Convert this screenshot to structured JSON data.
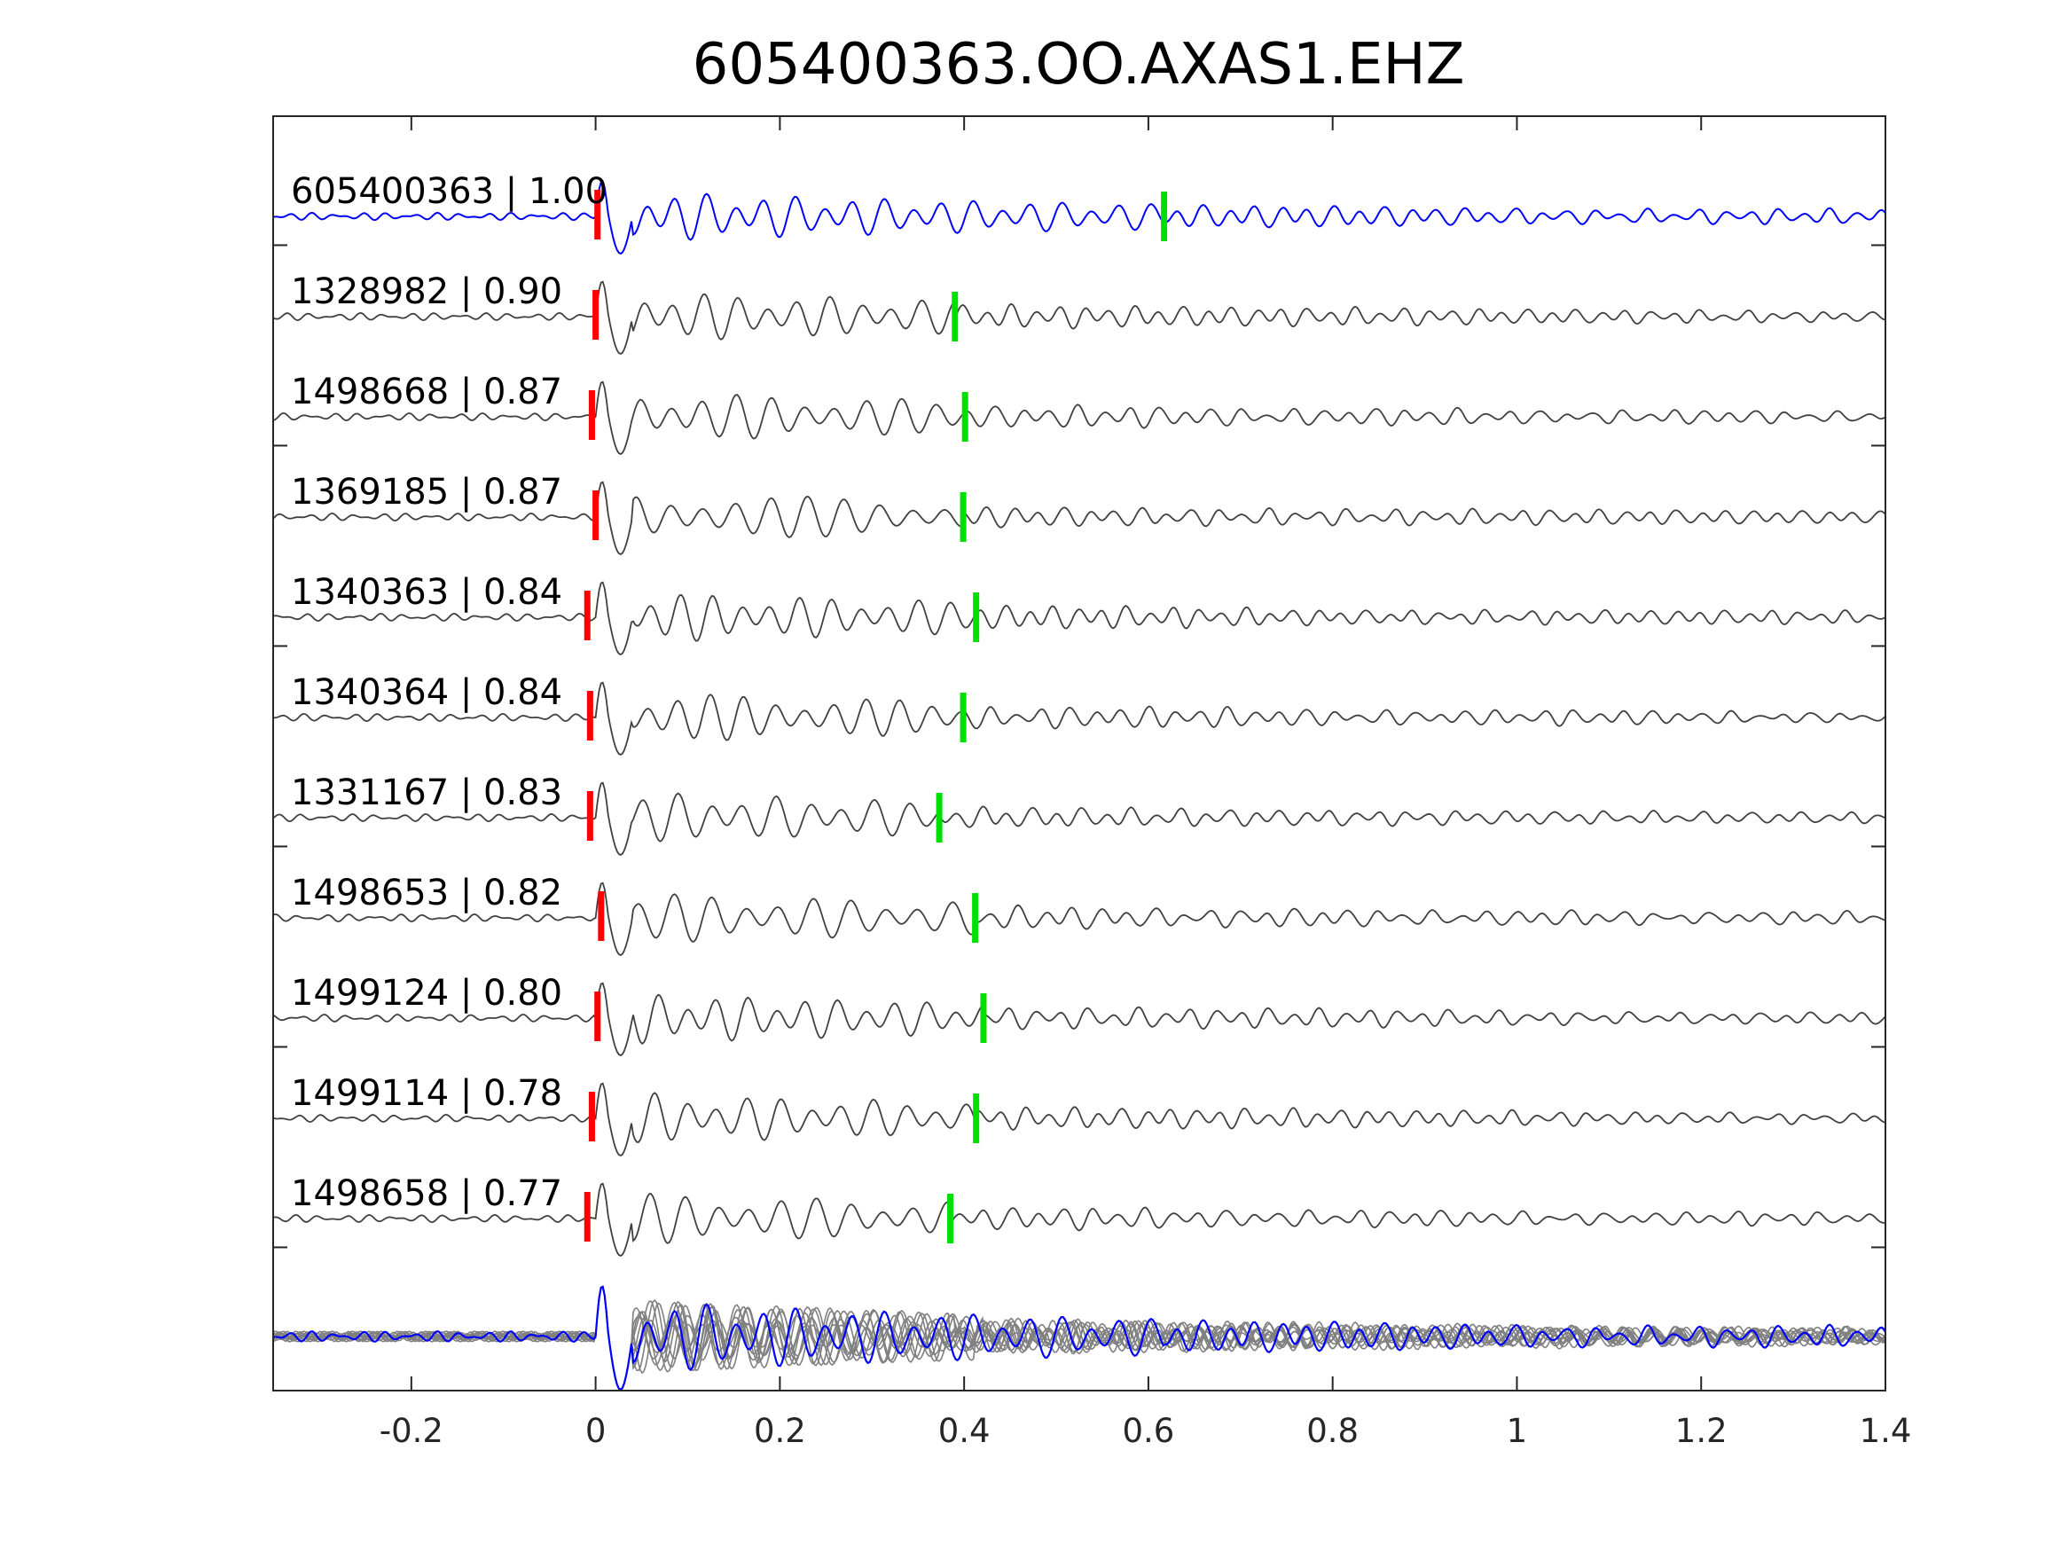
{
  "chart_data": {
    "type": "line",
    "title": "605400363.OO.AXAS1.EHZ",
    "xlabel": "",
    "ylabel": "",
    "xlim": [
      -0.35,
      1.4
    ],
    "grid": false,
    "x_ticks": [
      -0.2,
      0,
      0.2,
      0.4,
      0.6,
      0.8,
      1,
      1.2,
      1.4
    ],
    "x_tick_labels": [
      "-0.2",
      "0",
      "0.2",
      "0.4",
      "0.6",
      "0.8",
      "1",
      "1.2",
      "1.4"
    ],
    "colors": {
      "master": "#0000ff",
      "neighbor": "#404040",
      "stack_neighbor": "#808080",
      "p_pick": "#ff0000",
      "s_pick": "#00e000"
    },
    "series": [
      {
        "id": "605400363",
        "cc": "1.00",
        "label": "605400363 | 1.00",
        "p_pick": 0.002,
        "s_pick": 0.617,
        "master": true
      },
      {
        "id": "1328982",
        "cc": "0.90",
        "label": "1328982 | 0.90",
        "p_pick": 0.0,
        "s_pick": 0.39
      },
      {
        "id": "1498668",
        "cc": "0.87",
        "label": "1498668 | 0.87",
        "p_pick": -0.004,
        "s_pick": 0.401
      },
      {
        "id": "1369185",
        "cc": "0.87",
        "label": "1369185 | 0.87",
        "p_pick": 0.0,
        "s_pick": 0.399
      },
      {
        "id": "1340363",
        "cc": "0.84",
        "label": "1340363 | 0.84",
        "p_pick": -0.009,
        "s_pick": 0.413
      },
      {
        "id": "1340364",
        "cc": "0.84",
        "label": "1340364 | 0.84",
        "p_pick": -0.006,
        "s_pick": 0.399
      },
      {
        "id": "1331167",
        "cc": "0.83",
        "label": "1331167 | 0.83",
        "p_pick": -0.006,
        "s_pick": 0.373
      },
      {
        "id": "1498653",
        "cc": "0.82",
        "label": "1498653 | 0.82",
        "p_pick": 0.006,
        "s_pick": 0.412
      },
      {
        "id": "1499124",
        "cc": "0.80",
        "label": "1499124 | 0.80",
        "p_pick": 0.002,
        "s_pick": 0.421
      },
      {
        "id": "1499114",
        "cc": "0.78",
        "label": "1499114 | 0.78",
        "p_pick": -0.004,
        "s_pick": 0.413
      },
      {
        "id": "1498658",
        "cc": "0.77",
        "label": "1498658 | 0.77",
        "p_pick": -0.009,
        "s_pick": 0.385
      }
    ],
    "stack": {
      "label": "",
      "description": "overlay of all traces"
    }
  }
}
